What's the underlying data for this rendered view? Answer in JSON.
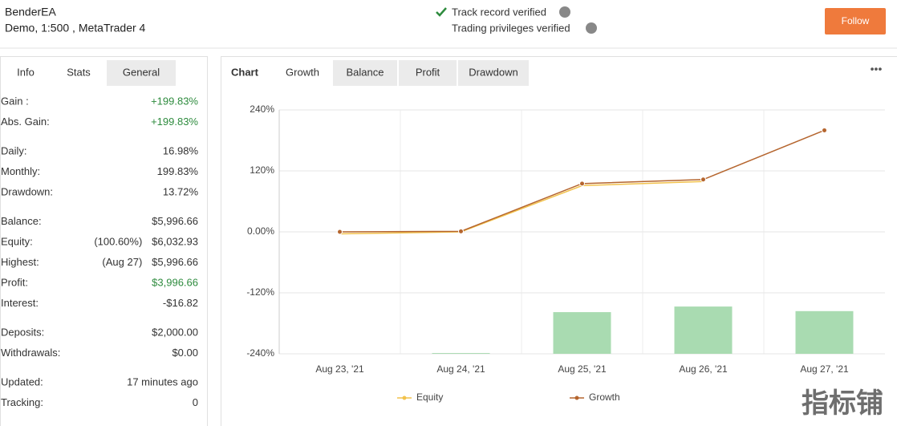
{
  "header": {
    "account_name": "BenderEA",
    "account_details": "Demo, 1:500 , MetaTrader 4",
    "verifications": [
      "Track record verified",
      "Trading privileges verified"
    ],
    "button": "Follow"
  },
  "left_panel": {
    "tabs": [
      "Info",
      "Stats",
      "General"
    ],
    "active_tab": "Stats",
    "groups": [
      [
        {
          "label": "Gain :",
          "value": "+199.83%",
          "color": "#2e8b3e"
        },
        {
          "label": "Abs. Gain:",
          "value": "+199.83%",
          "color": "#2e8b3e"
        }
      ],
      [
        {
          "label": "Daily:",
          "value": "16.98%"
        },
        {
          "label": "Monthly:",
          "value": "199.83%"
        },
        {
          "label": "Drawdown:",
          "value": "13.72%"
        }
      ],
      [
        {
          "label": "Balance:",
          "value": "$5,996.66"
        },
        {
          "label": "Equity:",
          "note": "(100.60%)",
          "value": "$6,032.93"
        },
        {
          "label": "Highest:",
          "note": "(Aug 27)",
          "value": "$5,996.66"
        },
        {
          "label": "Profit:",
          "value": "$3,996.66",
          "color": "#2e8b3e"
        },
        {
          "label": "Interest:",
          "value": "-$16.82"
        }
      ],
      [
        {
          "label": "Deposits:",
          "value": "$2,000.00"
        },
        {
          "label": "Withdrawals:",
          "value": "$0.00"
        }
      ],
      [
        {
          "label": "Updated:",
          "value": "17 minutes ago"
        },
        {
          "label": "Tracking:",
          "value": "0"
        }
      ]
    ]
  },
  "chart_panel": {
    "label": "Chart",
    "tabs": [
      "Growth",
      "Balance",
      "Profit",
      "Drawdown"
    ],
    "active_tab": "Growth"
  },
  "chart_data": {
    "type": "line",
    "categories": [
      "Aug 23, '21",
      "Aug 24, '21",
      "Aug 25, '21",
      "Aug 26, '21",
      "Aug 27, '21"
    ],
    "series": [
      {
        "name": "Equity",
        "color": "#f2c24c",
        "values": [
          -4,
          0,
          91,
          99,
          null
        ]
      },
      {
        "name": "Growth",
        "color": "#b5652e",
        "values": [
          0,
          1,
          95,
          103,
          199.83
        ]
      }
    ],
    "bars": {
      "color": "#a9dbb1",
      "values": [
        0,
        1.5,
        82,
        93,
        84
      ]
    },
    "ylim": [
      -240,
      240
    ],
    "yticks": [
      {
        "value": -240,
        "label": "-240%"
      },
      {
        "value": -120,
        "label": "-120%"
      },
      {
        "value": 0,
        "label": "0.00%"
      },
      {
        "value": 120,
        "label": "120%"
      },
      {
        "value": 240,
        "label": "240%"
      }
    ],
    "grid": true
  },
  "watermark": "指标铺"
}
